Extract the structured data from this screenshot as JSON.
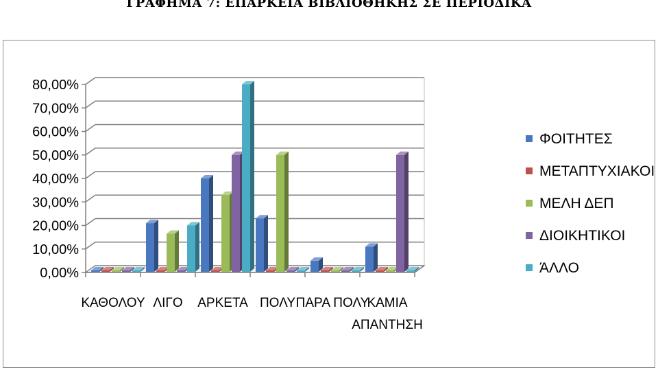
{
  "page": {
    "title": "ΓΡΑΦΗΜΑ 7: ΕΠΑΡΚΕΙΑ ΒΙΒΛΙΟΘΗΚΗΣ ΣΕ ΠΕΡΙΟΔΙΚΑ"
  },
  "chart_data": {
    "type": "bar",
    "style": "3d-clustered-column",
    "title": "",
    "xlabel": "",
    "ylabel": "",
    "ylim": [
      0,
      80
    ],
    "y_ticks": [
      "0,00%",
      "10,00%",
      "20,00%",
      "30,00%",
      "40,00%",
      "50,00%",
      "60,00%",
      "70,00%",
      "80,00%"
    ],
    "grid": true,
    "legend_position": "right",
    "categories": [
      [
        "ΚΑΘΟΛΟΥ"
      ],
      [
        "ΛΙΓΟ"
      ],
      [
        "ΑΡΚΕΤΑ"
      ],
      [
        "ΠΟΛΥ"
      ],
      [
        "ΠΑΡΑ ΠΟΛΥ"
      ],
      [
        "ΚΑΜΙΑ",
        "ΑΠΑΝΤΗΣΗ"
      ]
    ],
    "series": [
      {
        "name": "ΦΟΙΤΗΤΕΣ",
        "color": "#4a78c0",
        "values": [
          0,
          21,
          40,
          23,
          5,
          11
        ]
      },
      {
        "name": "ΜΕΤΑΠΤΥΧΙΑΚΟΙ",
        "color": "#c0504d",
        "values": [
          0,
          0,
          0,
          0,
          0,
          0
        ]
      },
      {
        "name": "ΜΕΛΗ ΔΕΠ",
        "color": "#9bbb59",
        "values": [
          0,
          16.5,
          33,
          50,
          0,
          0
        ]
      },
      {
        "name": "ΔΙΟΙΚΗΤΙΚΟΙ",
        "color": "#8064a2",
        "values": [
          0,
          0,
          50,
          0,
          0,
          50
        ]
      },
      {
        "name": "ΆΛΛΟ",
        "color": "#4bacc6",
        "values": [
          0,
          20,
          80,
          0,
          0,
          0
        ]
      }
    ]
  }
}
